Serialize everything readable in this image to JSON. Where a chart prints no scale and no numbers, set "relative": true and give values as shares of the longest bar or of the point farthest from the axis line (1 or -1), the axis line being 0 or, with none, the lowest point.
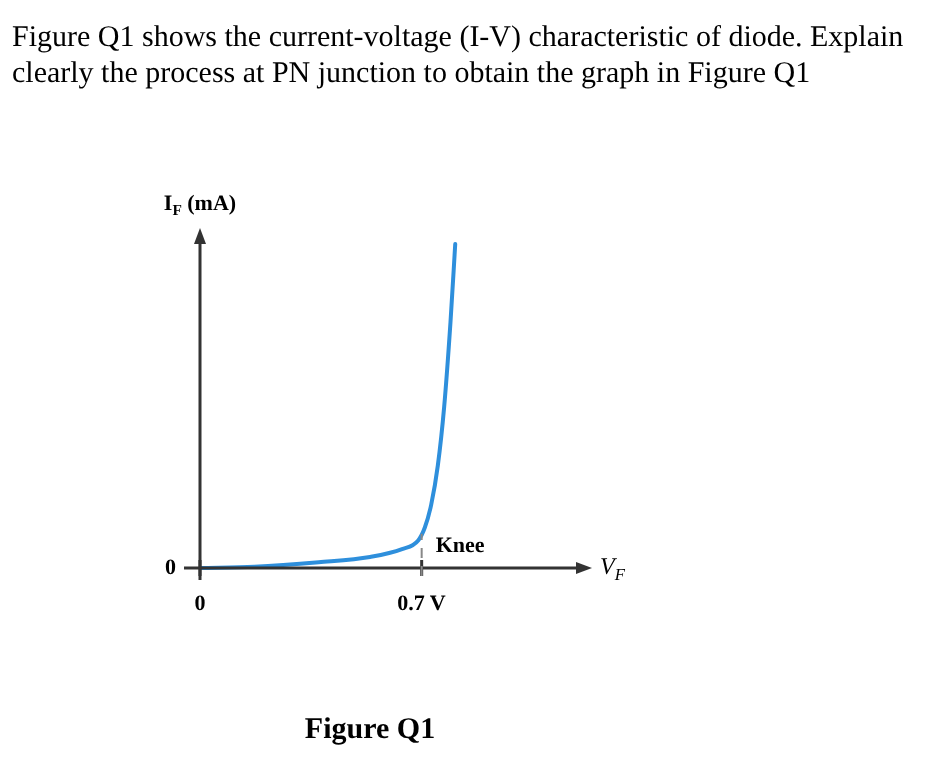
{
  "chart_data": {
    "type": "line",
    "title": "Figure Q1 shows the current-voltage (I-V) characteristic of diode. Explain clearly the process at PN junction to obtain the graph in Figure Q1",
    "xlabel": "V$_{F}$",
    "ylabel": "I$_{F}$ (mA)",
    "relative": true,
    "x": [
      0,
      0.172,
      0.375,
      0.537,
      0.638,
      0.689,
      0.71,
      0.73,
      0.751,
      0.771,
      0.791,
      0.806
    ],
    "series": [
      {
        "color": "#2e8fdc",
        "values": [
          0,
          0.004,
          0.018,
          0.034,
          0.058,
          0.085,
          0.125,
          0.195,
          0.316,
          0.497,
          0.759,
          1
        ]
      }
    ],
    "xlim": [
      0,
      1.2
    ],
    "xticks": [
      0,
      {
        "value": 0.7,
        "label": "0.7 V"
      }
    ],
    "ref_lines": [
      {
        "axis": "x",
        "value": 0.7,
        "color": "#888888",
        "line_style": "dashed"
      }
    ],
    "annotations": [
      {
        "text": "Knee",
        "x": 0.7,
        "y": 0.085
      },
      {
        "text": "0",
        "x": 0,
        "y": 0
      },
      "Figure Q1"
    ],
    "grid": false,
    "legend": false,
    "marker": "none",
    "line_style": "solid"
  }
}
